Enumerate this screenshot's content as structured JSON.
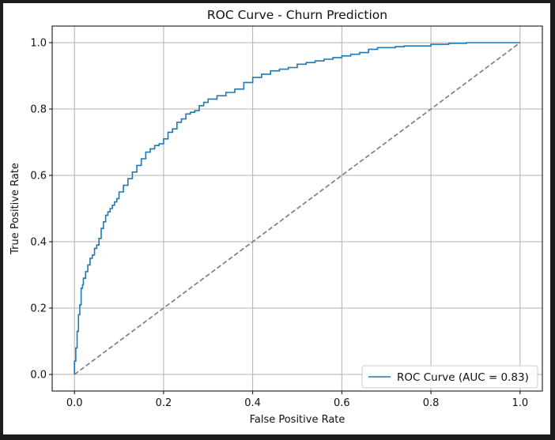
{
  "chart_data": {
    "type": "line",
    "title": "ROC Curve - Churn Prediction",
    "xlabel": "False Positive Rate",
    "ylabel": "True Positive Rate",
    "xlim": [
      -0.05,
      1.05
    ],
    "ylim": [
      -0.05,
      1.05
    ],
    "xticks": [
      0.0,
      0.2,
      0.4,
      0.6,
      0.8,
      1.0
    ],
    "yticks": [
      0.0,
      0.2,
      0.4,
      0.6,
      0.8,
      1.0
    ],
    "xtick_labels": [
      "0.0",
      "0.2",
      "0.4",
      "0.6",
      "0.8",
      "1.0"
    ],
    "ytick_labels": [
      "0.0",
      "0.2",
      "0.4",
      "0.6",
      "0.8",
      "1.0"
    ],
    "grid": true,
    "legend_position": "lower-right",
    "series": [
      {
        "name": "ROC Curve (AUC = 0.83)",
        "style": "solid",
        "color": "#1f77b4",
        "x": [
          0.0,
          0.0,
          0.003,
          0.006,
          0.009,
          0.012,
          0.015,
          0.018,
          0.02,
          0.025,
          0.03,
          0.035,
          0.04,
          0.045,
          0.05,
          0.055,
          0.06,
          0.065,
          0.07,
          0.075,
          0.08,
          0.085,
          0.09,
          0.095,
          0.1,
          0.11,
          0.12,
          0.13,
          0.14,
          0.15,
          0.16,
          0.17,
          0.18,
          0.19,
          0.2,
          0.21,
          0.22,
          0.23,
          0.24,
          0.25,
          0.26,
          0.27,
          0.28,
          0.29,
          0.3,
          0.32,
          0.34,
          0.36,
          0.38,
          0.4,
          0.42,
          0.44,
          0.46,
          0.48,
          0.5,
          0.52,
          0.54,
          0.56,
          0.58,
          0.6,
          0.62,
          0.64,
          0.66,
          0.68,
          0.7,
          0.72,
          0.74,
          0.76,
          0.8,
          0.84,
          0.88,
          0.92,
          0.96,
          1.0
        ],
        "y": [
          0.0,
          0.02,
          0.04,
          0.08,
          0.13,
          0.18,
          0.21,
          0.26,
          0.27,
          0.29,
          0.31,
          0.33,
          0.35,
          0.36,
          0.38,
          0.39,
          0.41,
          0.44,
          0.46,
          0.48,
          0.49,
          0.5,
          0.51,
          0.52,
          0.53,
          0.55,
          0.57,
          0.59,
          0.61,
          0.63,
          0.65,
          0.67,
          0.68,
          0.69,
          0.695,
          0.71,
          0.73,
          0.74,
          0.76,
          0.77,
          0.785,
          0.79,
          0.795,
          0.81,
          0.82,
          0.83,
          0.84,
          0.85,
          0.86,
          0.88,
          0.895,
          0.905,
          0.915,
          0.92,
          0.925,
          0.935,
          0.94,
          0.945,
          0.95,
          0.955,
          0.96,
          0.965,
          0.97,
          0.98,
          0.985,
          0.985,
          0.988,
          0.99,
          0.99,
          0.995,
          0.998,
          1.0,
          1.0,
          1.0
        ]
      },
      {
        "style": "dashed",
        "color": "#808080",
        "x": [
          0.0,
          1.0
        ],
        "y": [
          0.0,
          1.0
        ]
      }
    ]
  }
}
